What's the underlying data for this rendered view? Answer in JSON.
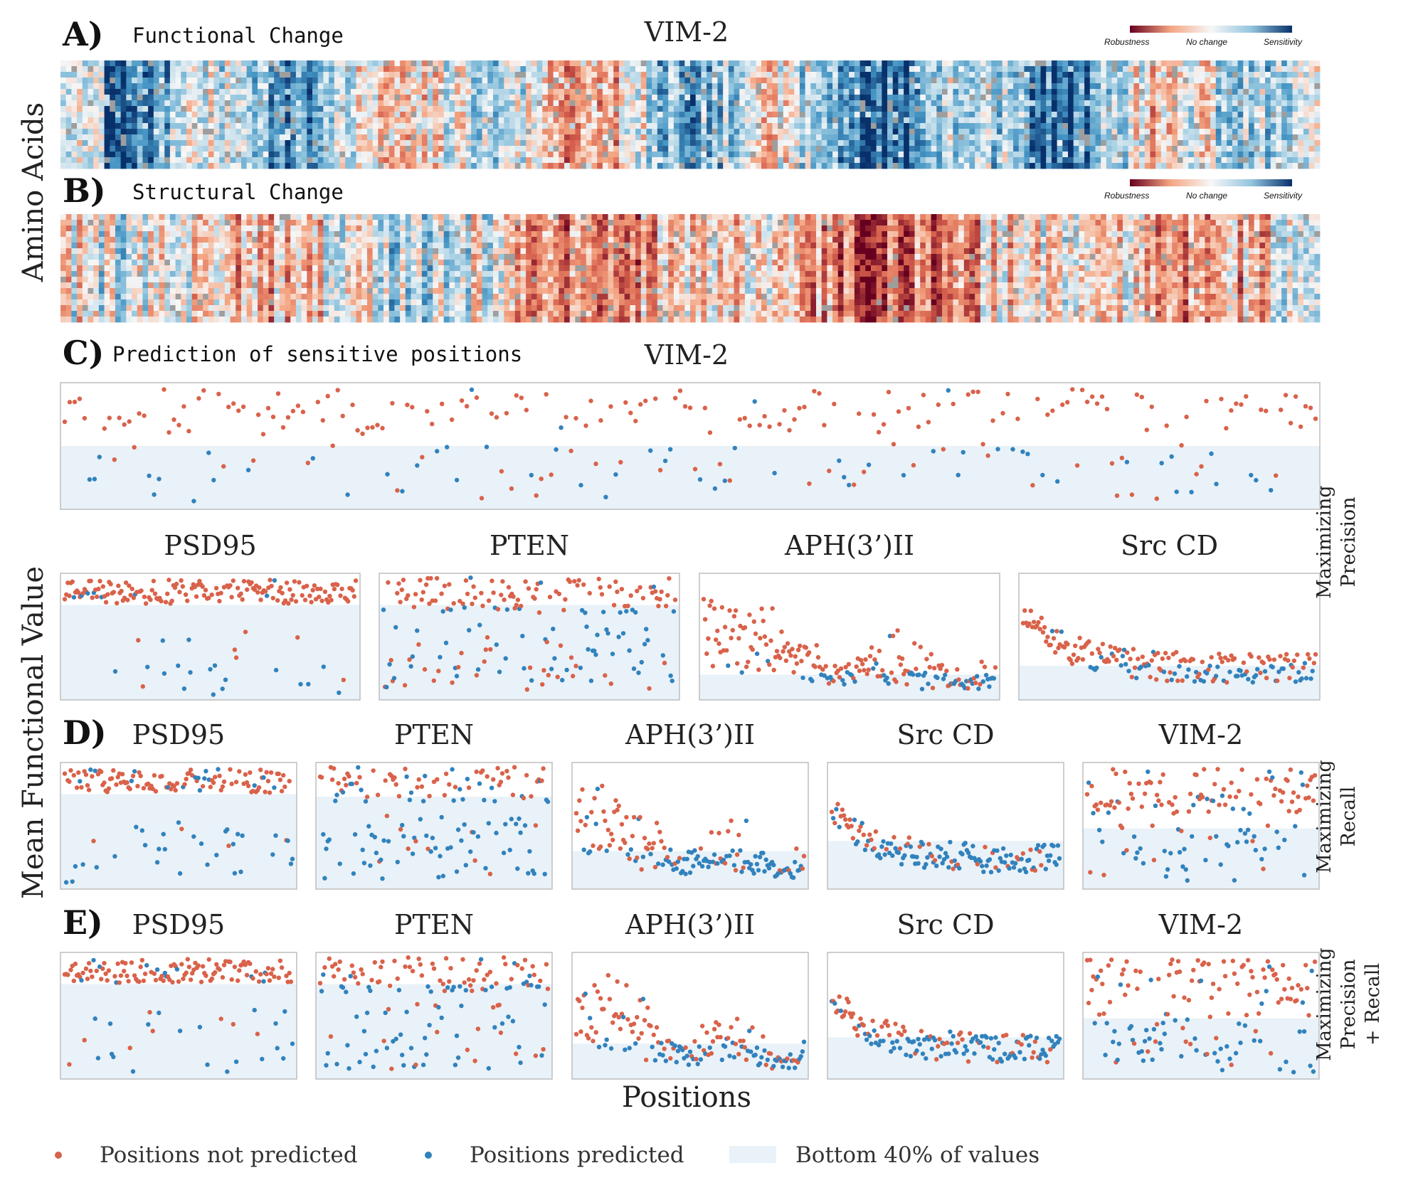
{
  "colors": {
    "not_predicted": "#d9624a",
    "predicted": "#3182bd",
    "bottom_band": "#e9f2f8",
    "frame": "#bdbdbd",
    "robustness": "#8b1a1a",
    "no_change": "#f7f7f7",
    "sensitivity": "#08306b"
  },
  "figure": {
    "y_label_top": "Amino Acids",
    "y_label_bottom": "Mean Functional Value",
    "x_label": "Positions"
  },
  "legend": {
    "not_predicted": "Positions not predicted",
    "predicted": "Positions predicted",
    "bottom": "Bottom 40% of values"
  },
  "rows": {
    "C": [
      "Maximizing",
      "Precision"
    ],
    "D": [
      "Maximizing",
      "Recall"
    ],
    "E": [
      "Maximizing",
      "Precision",
      "+ Recall"
    ]
  },
  "chart_data": [
    {
      "id": "A",
      "type": "heatmap",
      "letter": "A)",
      "subtitle": "Functional Change",
      "title": "VIM-2",
      "colorbar": [
        "Robustness",
        "No change",
        "Sensitivity"
      ]
    },
    {
      "id": "B",
      "type": "heatmap",
      "letter": "B)",
      "subtitle": "Structural Change",
      "colorbar": [
        "Robustness",
        "No change",
        "Sensitivity"
      ]
    },
    {
      "id": "C",
      "type": "scatter",
      "letter": "C)",
      "subtitle": "Prediction of sensitive positions",
      "panels": [
        {
          "title": "VIM-2",
          "bottom_fraction": 0.5,
          "seed": 11,
          "profile": "vim"
        },
        {
          "title": "PSD95",
          "bottom_fraction": 0.75,
          "seed": 21,
          "profile": "psd"
        },
        {
          "title": "PTEN",
          "bottom_fraction": 0.75,
          "seed": 31,
          "profile": "pten"
        },
        {
          "title": "APH(3’)II",
          "bottom_fraction": 0.2,
          "seed": 41,
          "profile": "aph"
        },
        {
          "title": "Src CD",
          "bottom_fraction": 0.27,
          "seed": 51,
          "profile": "src"
        }
      ]
    },
    {
      "id": "D",
      "type": "scatter",
      "letter": "D)",
      "panels": [
        {
          "title": "PSD95",
          "bottom_fraction": 0.75,
          "seed": 61,
          "profile": "psd"
        },
        {
          "title": "PTEN",
          "bottom_fraction": 0.73,
          "seed": 71,
          "profile": "pten"
        },
        {
          "title": "APH(3’)II",
          "bottom_fraction": 0.3,
          "seed": 81,
          "profile": "aph"
        },
        {
          "title": "Src CD",
          "bottom_fraction": 0.38,
          "seed": 91,
          "profile": "src"
        },
        {
          "title": "VIM-2",
          "bottom_fraction": 0.48,
          "seed": 101,
          "profile": "vim"
        }
      ]
    },
    {
      "id": "E",
      "type": "scatter",
      "letter": "E)",
      "panels": [
        {
          "title": "PSD95",
          "bottom_fraction": 0.75,
          "seed": 111,
          "profile": "psd"
        },
        {
          "title": "PTEN",
          "bottom_fraction": 0.75,
          "seed": 121,
          "profile": "pten"
        },
        {
          "title": "APH(3’)II",
          "bottom_fraction": 0.28,
          "seed": 131,
          "profile": "aph"
        },
        {
          "title": "Src CD",
          "bottom_fraction": 0.33,
          "seed": 141,
          "profile": "src"
        },
        {
          "title": "VIM-2",
          "bottom_fraction": 0.48,
          "seed": 151,
          "profile": "vim"
        }
      ]
    }
  ]
}
